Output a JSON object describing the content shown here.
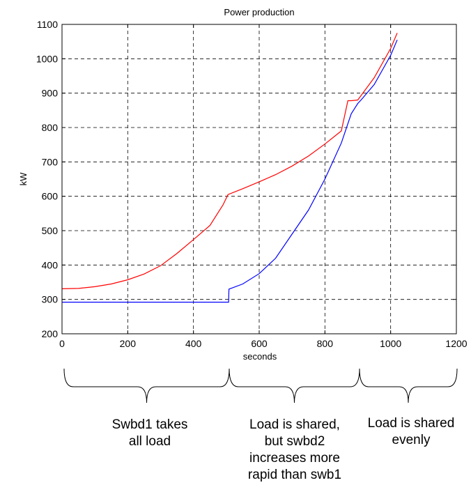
{
  "chart_data": {
    "type": "line",
    "title": "Power production",
    "xlabel": "seconds",
    "ylabel": "kW",
    "xlim": [
      0,
      1200
    ],
    "ylim": [
      200,
      1100
    ],
    "xticks": [
      0,
      200,
      400,
      600,
      800,
      1000,
      1200
    ],
    "yticks": [
      200,
      300,
      400,
      500,
      600,
      700,
      800,
      900,
      1000,
      1100
    ],
    "grid": true,
    "series": [
      {
        "color": "#ff0000",
        "x": [
          0,
          50,
          100,
          150,
          200,
          250,
          300,
          350,
          400,
          450,
          490,
          505,
          550,
          600,
          650,
          700,
          750,
          800,
          850,
          870,
          880,
          900,
          910,
          950,
          1000,
          1020
        ],
        "y": [
          331,
          332,
          337,
          345,
          357,
          374,
          398,
          434,
          474,
          515,
          575,
          605,
          622,
          642,
          663,
          688,
          717,
          752,
          790,
          878,
          878,
          880,
          893,
          945,
          1030,
          1075
        ]
      },
      {
        "color": "#0000ff",
        "x": [
          0,
          100,
          200,
          300,
          400,
          500,
          507,
          508,
          550,
          600,
          650,
          700,
          750,
          800,
          850,
          880,
          900,
          910,
          950,
          1000,
          1020
        ],
        "y": [
          292,
          292,
          292,
          292,
          292,
          292,
          292,
          330,
          345,
          375,
          420,
          490,
          560,
          650,
          755,
          840,
          870,
          880,
          925,
          1010,
          1055
        ]
      }
    ]
  },
  "annotations": [
    {
      "lines": [
        "Swbd1 takes",
        "all load"
      ]
    },
    {
      "lines": [
        "Load is shared,",
        "but swbd2",
        "increases more",
        "rapid than swb1"
      ]
    },
    {
      "lines": [
        "Load is shared",
        "evenly"
      ]
    }
  ]
}
